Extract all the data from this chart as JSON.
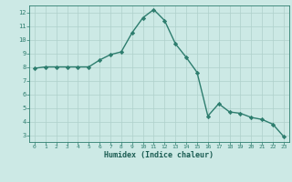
{
  "x": [
    0,
    1,
    2,
    3,
    4,
    5,
    6,
    7,
    8,
    9,
    10,
    11,
    12,
    13,
    14,
    15,
    16,
    17,
    18,
    19,
    20,
    21,
    22,
    23
  ],
  "y": [
    7.9,
    8.0,
    8.0,
    8.0,
    8.0,
    8.0,
    8.5,
    8.9,
    9.1,
    10.5,
    11.6,
    12.2,
    11.4,
    9.7,
    8.7,
    7.6,
    4.4,
    5.3,
    4.7,
    4.6,
    4.3,
    4.15,
    3.8,
    2.9
  ],
  "xlim": [
    -0.5,
    23.5
  ],
  "ylim": [
    2.5,
    12.5
  ],
  "yticks": [
    3,
    4,
    5,
    6,
    7,
    8,
    9,
    10,
    11,
    12
  ],
  "xticks": [
    0,
    1,
    2,
    3,
    4,
    5,
    6,
    7,
    8,
    9,
    10,
    11,
    12,
    13,
    14,
    15,
    16,
    17,
    18,
    19,
    20,
    21,
    22,
    23
  ],
  "xlabel": "Humidex (Indice chaleur)",
  "line_color": "#2d7d6e",
  "marker_color": "#2d7d6e",
  "bg_color": "#cce9e5",
  "grid_color": "#aed0cb",
  "axis_color": "#2d7d6e",
  "tick_color": "#2d7d6e",
  "label_color": "#1a5c52",
  "marker": "D",
  "marker_size": 2.2,
  "line_width": 1.0
}
